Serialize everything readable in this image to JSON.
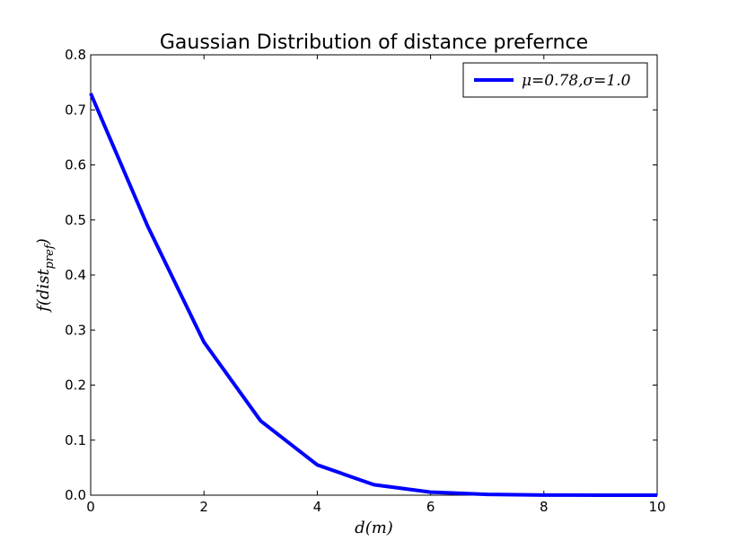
{
  "chart_data": {
    "type": "line",
    "title": "Gaussian Distribution of distance prefernce",
    "xlabel": "d(m)",
    "ylabel": "f(dist_pref)",
    "ylabel_main": "f(dist",
    "ylabel_sub": "pref",
    "ylabel_close": ")",
    "xlim": [
      0,
      10
    ],
    "ylim": [
      0.0,
      0.8
    ],
    "xticks": [
      0,
      2,
      4,
      6,
      8,
      10
    ],
    "xtick_labels": [
      "0",
      "2",
      "4",
      "6",
      "8",
      "10"
    ],
    "yticks": [
      0.0,
      0.1,
      0.2,
      0.3,
      0.4,
      0.5,
      0.6,
      0.7,
      0.8
    ],
    "ytick_labels": [
      "0.0",
      "0.1",
      "0.2",
      "0.3",
      "0.4",
      "0.5",
      "0.6",
      "0.7",
      "0.8"
    ],
    "grid": false,
    "legend_position": "top-right",
    "series": [
      {
        "name": "μ=0.78,σ=1.0",
        "color": "#0000ff",
        "x": [
          0,
          1,
          2,
          3,
          4,
          5,
          6,
          7,
          8,
          9,
          10
        ],
        "y": [
          0.73,
          0.49,
          0.278,
          0.135,
          0.055,
          0.019,
          0.0055,
          0.0014,
          0.0003,
          5e-05,
          0.0
        ]
      }
    ]
  }
}
